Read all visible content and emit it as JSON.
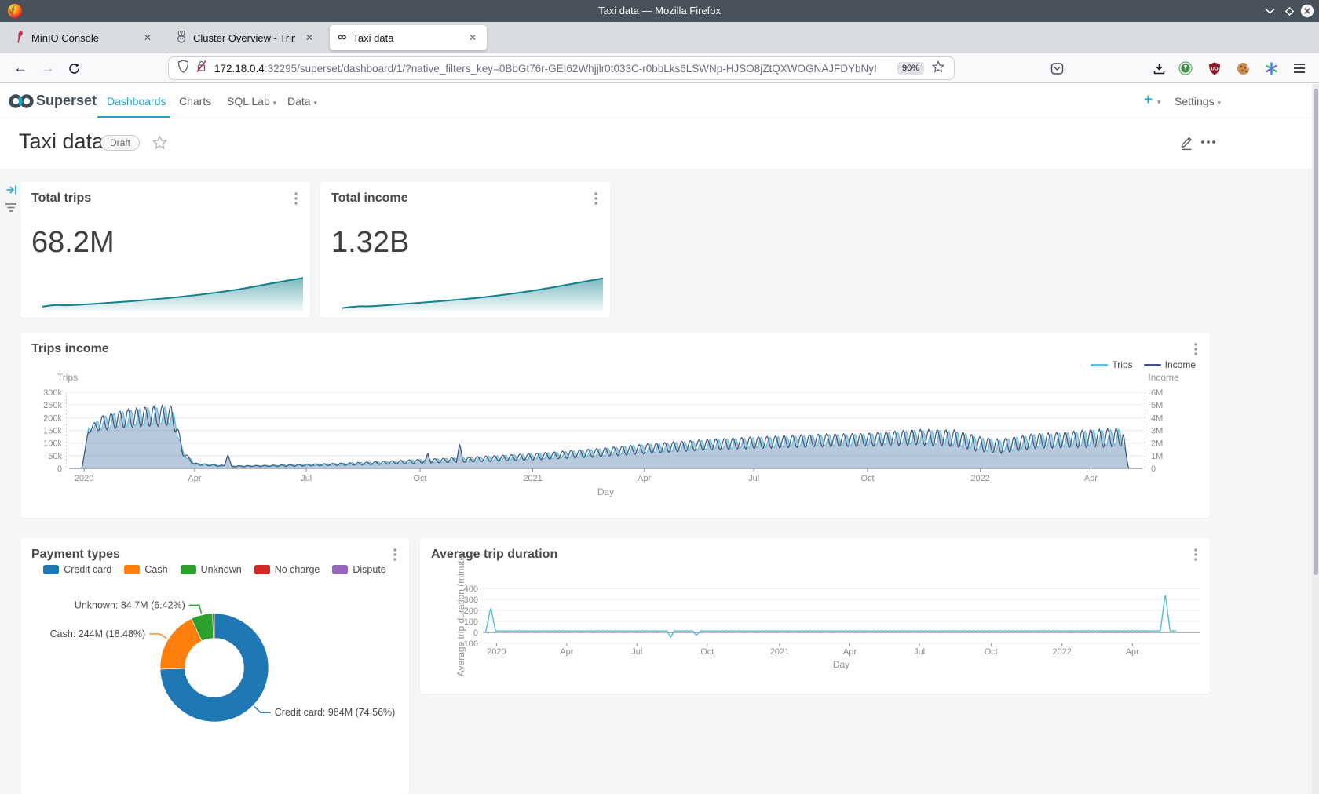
{
  "colors": {
    "accent": "#20a7c9",
    "spark": "#11808e",
    "trips_line": "#58c2dc",
    "income_line": "#44537e",
    "area_fill": "rgba(113,148,185,0.5)",
    "duration_line": "#53bdd9"
  },
  "window": {
    "title": "Taxi data — Mozilla Firefox"
  },
  "browser": {
    "tabs": [
      {
        "label": "MinIO Console",
        "close": "✕"
      },
      {
        "label": "Cluster Overview - Trino",
        "close": "✕"
      },
      {
        "label": "Taxi data",
        "close": "✕",
        "active": true
      }
    ],
    "new_tab": "+",
    "url_host": "172.18.0.4",
    "url_rest": ":32295/superset/dashboard/1/?native_filters_key=0BbGt76r-GEI62Whjjlr0t033C-r0bbLks6LSWNp-HJSO8jZtQXWOGNAJFDYbNyI",
    "zoom_badge": "90%",
    "back": "←",
    "forward": "→"
  },
  "navbar": {
    "brand": "Superset",
    "items": [
      {
        "label": "Dashboards",
        "active": true
      },
      {
        "label": "Charts"
      },
      {
        "label": "SQL Lab",
        "caret": "▾"
      },
      {
        "label": "Data",
        "caret": "▾"
      }
    ],
    "new_button": "+",
    "new_caret": "▾",
    "settings": "Settings",
    "settings_caret": "▾"
  },
  "dashboard": {
    "title": "Taxi data",
    "status_badge": "Draft"
  },
  "kpis": [
    {
      "title": "Total trips",
      "value": "68.2M",
      "spark": [
        [
          0,
          0.14
        ],
        [
          0.05,
          0.2
        ],
        [
          0.09,
          0.17
        ],
        [
          0.2,
          0.22
        ],
        [
          0.35,
          0.3
        ],
        [
          0.5,
          0.4
        ],
        [
          0.62,
          0.5
        ],
        [
          0.75,
          0.63
        ],
        [
          0.88,
          0.82
        ],
        [
          1,
          0.97
        ]
      ]
    },
    {
      "title": "Total income",
      "value": "1.32B",
      "spark": [
        [
          0,
          0.1
        ],
        [
          0.06,
          0.16
        ],
        [
          0.1,
          0.14
        ],
        [
          0.2,
          0.2
        ],
        [
          0.35,
          0.28
        ],
        [
          0.5,
          0.38
        ],
        [
          0.62,
          0.48
        ],
        [
          0.75,
          0.62
        ],
        [
          0.88,
          0.8
        ],
        [
          1,
          0.96
        ]
      ]
    }
  ],
  "chart_data": [
    {
      "type": "area",
      "title": "Trips income",
      "xlabel": "Day",
      "x_ticks": [
        [
          "2020",
          0.014
        ],
        [
          "Apr",
          0.117
        ],
        [
          "Jul",
          0.221
        ],
        [
          "Oct",
          0.327
        ],
        [
          "2021",
          0.432
        ],
        [
          "Apr",
          0.536
        ],
        [
          "Jul",
          0.638
        ],
        [
          "Oct",
          0.744
        ],
        [
          "2022",
          0.849
        ],
        [
          "Apr",
          0.952
        ]
      ],
      "x_range": [
        "mid-Dec 2019",
        "mid-May 2022"
      ],
      "y_left": {
        "title": "Trips",
        "ticks": [
          "300k",
          "250k",
          "200k",
          "150k",
          "100k",
          "50k",
          "0"
        ],
        "max": 300000,
        "min": 0
      },
      "y_right": {
        "title": "Income",
        "ticks": [
          "6M",
          "5M",
          "4M",
          "3M",
          "2M",
          "1M",
          "0"
        ],
        "max": 6000000,
        "min": 0
      },
      "legend": [
        {
          "name": "Trips",
          "color": "#58c2dc"
        },
        {
          "name": "Income",
          "color": "#44537e"
        }
      ],
      "grid": true,
      "series_note": "Daily trips (left axis, thousands) with weekly oscillation; Income (right axis) tracks trips at ~20x scale so both curves overlap. Envelope keypoints are [time-fraction, trips-in-thousands, oscillation-amplitude].",
      "trips_envelope_k": [
        [
          0,
          0,
          0
        ],
        [
          0.012,
          0,
          0
        ],
        [
          0.018,
          150,
          0.06
        ],
        [
          0.03,
          178,
          0.14
        ],
        [
          0.05,
          195,
          0.16
        ],
        [
          0.075,
          205,
          0.17
        ],
        [
          0.095,
          208,
          0.17
        ],
        [
          0.1,
          165,
          0.15
        ],
        [
          0.106,
          60,
          0.15
        ],
        [
          0.117,
          17,
          0.22
        ],
        [
          0.15,
          8,
          0.25
        ],
        [
          0.19,
          10,
          0.25
        ],
        [
          0.221,
          13,
          0.25
        ],
        [
          0.26,
          17,
          0.25
        ],
        [
          0.3,
          23,
          0.25
        ],
        [
          0.327,
          28,
          0.25
        ],
        [
          0.38,
          36,
          0.25
        ],
        [
          0.432,
          46,
          0.25
        ],
        [
          0.49,
          61,
          0.24
        ],
        [
          0.536,
          77,
          0.22
        ],
        [
          0.59,
          92,
          0.2
        ],
        [
          0.638,
          101,
          0.2
        ],
        [
          0.7,
          110,
          0.2
        ],
        [
          0.744,
          113,
          0.2
        ],
        [
          0.79,
          123,
          0.22
        ],
        [
          0.825,
          119,
          0.24
        ],
        [
          0.849,
          95,
          0.27
        ],
        [
          0.868,
          87,
          0.28
        ],
        [
          0.9,
          108,
          0.24
        ],
        [
          0.93,
          113,
          0.24
        ],
        [
          0.952,
          118,
          0.26
        ],
        [
          0.982,
          123,
          0.26
        ],
        [
          0.987,
          0,
          0
        ],
        [
          1,
          0,
          0
        ]
      ],
      "weekly_cycles": 126,
      "spikes_k": [
        [
          0.148,
          55,
          0.004
        ],
        [
          0.334,
          62,
          0.004
        ],
        [
          0.364,
          100,
          0.004
        ]
      ],
      "series_end": 0.988
    },
    {
      "type": "pie",
      "title": "Payment types",
      "donut": true,
      "slices": [
        {
          "label": "Credit card",
          "value": "984M",
          "pct": 74.56,
          "color": "#1f77b4",
          "callout": "Credit card: 984M (74.56%)"
        },
        {
          "label": "Cash",
          "value": "244M",
          "pct": 18.48,
          "color": "#ff7f0e",
          "callout": "Cash: 244M (18.48%)"
        },
        {
          "label": "Unknown",
          "value": "84.7M",
          "pct": 6.42,
          "color": "#2ca02c",
          "callout": "Unknown: 84.7M (6.42%)"
        },
        {
          "label": "No charge",
          "pct": 0.4,
          "color": "#d62728"
        },
        {
          "label": "Dispute",
          "pct": 0.14,
          "color": "#9467bd"
        }
      ]
    },
    {
      "type": "line",
      "title": "Average trip duration",
      "xlabel": "Day",
      "ylabel": "Average trip duration (minute",
      "x_ticks": [
        [
          "2020",
          0.019
        ],
        [
          "Apr",
          0.117
        ],
        [
          "Jul",
          0.215
        ],
        [
          "Oct",
          0.313
        ],
        [
          "2021",
          0.414
        ],
        [
          "Apr",
          0.512
        ],
        [
          "Jul",
          0.609
        ],
        [
          "Oct",
          0.709
        ],
        [
          "2022",
          0.808
        ],
        [
          "Apr",
          0.906
        ]
      ],
      "y_ticks": [
        "400",
        "300",
        "200",
        "100",
        "0",
        "-100"
      ],
      "ylim": [
        -100,
        400
      ],
      "grid": true,
      "series_note": "Flat baseline ~13 minutes with small noise; spike to ~230 in early Jan 2020, two dips to ~-45/-25 in Aug-Sep 2020, spike to ~350 near end (Apr 2022).",
      "envelope": [
        [
          0,
          0,
          0
        ],
        [
          0.004,
          2,
          0
        ],
        [
          0.02,
          13,
          0.15
        ],
        [
          0.5,
          13,
          0.16
        ],
        [
          0.96,
          14,
          0.15
        ],
        [
          1,
          13,
          0.1
        ]
      ],
      "cycles": 180,
      "spikes": [
        [
          0.011,
          228,
          0.007
        ],
        [
          0.262,
          -45,
          0.004
        ],
        [
          0.298,
          -25,
          0.004
        ],
        [
          0.952,
          350,
          0.007
        ]
      ],
      "series_end": 0.968
    }
  ]
}
